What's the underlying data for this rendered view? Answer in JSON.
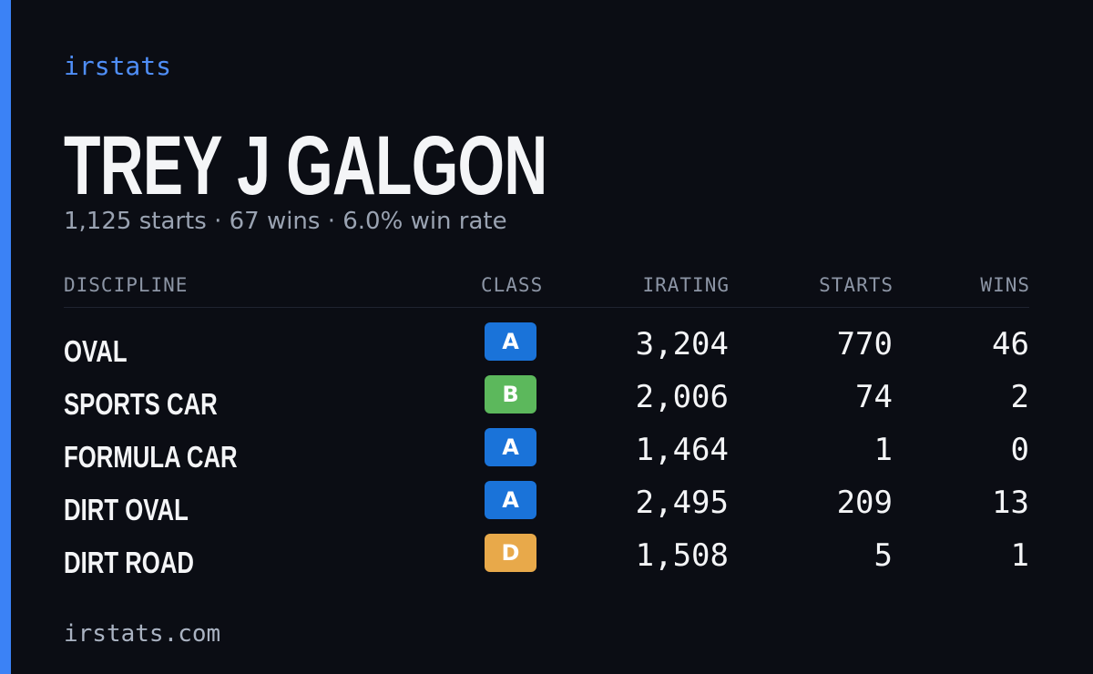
{
  "brand": "irstats",
  "name": "TREY J GALGON",
  "summary": "1,125 starts · 67 wins · 6.0% win rate",
  "table": {
    "headers": [
      "DISCIPLINE",
      "CLASS",
      "IRATING",
      "STARTS",
      "WINS"
    ],
    "rows": [
      [
        "OVAL",
        "A",
        "3,204",
        "770",
        "46"
      ],
      [
        "SPORTS CAR",
        "B",
        "2,006",
        "74",
        "2"
      ],
      [
        "FORMULA CAR",
        "A",
        "1,464",
        "1",
        "0"
      ],
      [
        "DIRT OVAL",
        "A",
        "2,495",
        "209",
        "13"
      ],
      [
        "DIRT ROAD",
        "D",
        "1,508",
        "5",
        "1"
      ]
    ]
  },
  "footer": "irstats.com"
}
